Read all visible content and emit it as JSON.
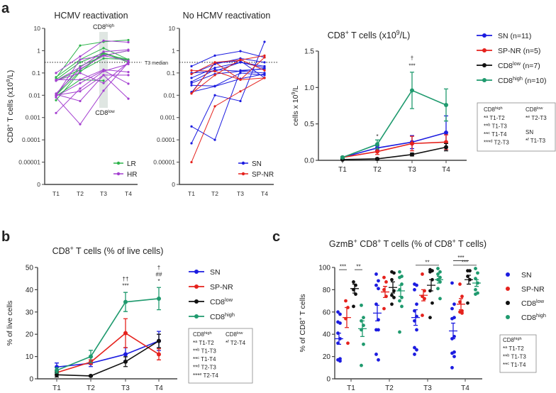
{
  "panel_labels": {
    "a": "a",
    "b": "b",
    "c": "c"
  },
  "colors": {
    "LR": "#2db34a",
    "HR": "#a43fd0",
    "SN": "#1c1ce0",
    "SP-NR": "#e5221d",
    "CD8low": "#111111",
    "CD8high": "#1f9a6e",
    "shade": "#dfe6e2"
  },
  "chart_data": [
    {
      "id": "a-left",
      "type": "line",
      "yscale": "log",
      "title": "HCMV reactivation",
      "ylabel": "CD8^{+} T cells (x10^{9}/L)",
      "categories": [
        "T1",
        "T2",
        "T3",
        "T4"
      ],
      "yticks": [
        "10",
        "1",
        "0.1",
        "0.01",
        "0.001",
        "0.0001",
        "0.00001",
        "0"
      ],
      "reference_line": {
        "value": 0.3,
        "label": "T3 median"
      },
      "annotations": {
        "high": "CD8^{high}",
        "low": "CD8^{low}"
      },
      "legend": [
        {
          "name": "LR",
          "color": "#2db34a"
        },
        {
          "name": "HR",
          "color": "#a43fd0"
        }
      ],
      "series": [
        {
          "group": "LR",
          "values": [
            0.06,
            1.7,
            2.5,
            3
          ]
        },
        {
          "group": "LR",
          "values": [
            0.065,
            0.4,
            1.3,
            0.4
          ]
        },
        {
          "group": "LR",
          "values": [
            0.05,
            0.3,
            0.8,
            0.35
          ]
        },
        {
          "group": "LR",
          "values": [
            0.01,
            0.12,
            0.45,
            0.4
          ]
        },
        {
          "group": "LR",
          "values": [
            0.006,
            0.11,
            0.8,
            0.3
          ]
        },
        {
          "group": "LR",
          "values": [
            0.009,
            0.05,
            0.045,
            null
          ]
        },
        {
          "group": "LR",
          "values": [
            0.045,
            0.14,
            0.7,
            0.4
          ]
        },
        {
          "group": "LR",
          "values": [
            0.01,
            0.2,
            0.6,
            1.0
          ]
        },
        {
          "group": "HR",
          "values": [
            0.1,
            0.55,
            2.8,
            2.4
          ]
        },
        {
          "group": "HR",
          "values": [
            0.045,
            0.18,
            0.9,
            1.1
          ]
        },
        {
          "group": "HR",
          "values": [
            0.012,
            0.15,
            0.6,
            1.0
          ]
        },
        {
          "group": "HR",
          "values": [
            0.05,
            0.05,
            0.14,
            0.11
          ]
        },
        {
          "group": "HR",
          "values": [
            0.011,
            0.0055,
            0.08,
            0.08
          ]
        },
        {
          "group": "HR",
          "values": [
            0.0016,
            0.02,
            0.12,
            0.25
          ]
        },
        {
          "group": "HR",
          "values": [
            0.008,
            0.0005,
            0.016,
            0.3
          ]
        },
        {
          "group": "HR",
          "values": [
            0.009,
            0.035,
            0.13,
            0.033
          ]
        },
        {
          "group": "HR",
          "values": [
            0.01,
            0.015,
            0.08,
            0.007
          ]
        },
        {
          "group": "HR",
          "values": [
            0.045,
            0.1,
            0.035,
            0.3
          ]
        },
        {
          "group": "HR",
          "values": [
            0.01,
            0.4,
            0.6,
            0.35
          ]
        }
      ]
    },
    {
      "id": "a-middle",
      "type": "line",
      "yscale": "log",
      "title": "No HCMV reactivation",
      "categories": [
        "T1",
        "T2",
        "T3",
        "T4"
      ],
      "yticks": [
        "10",
        "1",
        "0.1",
        "0.01",
        "0.001",
        "0.0001",
        "0.00001",
        "0"
      ],
      "reference_line": {
        "value": 0.3
      },
      "legend": [
        {
          "name": "SN",
          "color": "#1c1ce0"
        },
        {
          "name": "SP-NR",
          "color": "#e5221d"
        }
      ],
      "series": [
        {
          "group": "SN",
          "values": [
            0.2,
            0.6,
            0.95,
            0.5
          ]
        },
        {
          "group": "SN",
          "values": [
            0.09,
            0.25,
            0.45,
            0.3
          ]
        },
        {
          "group": "SN",
          "values": [
            0.06,
            0.17,
            0.3,
            0.2
          ]
        },
        {
          "group": "SN",
          "values": [
            0.035,
            0.09,
            0.12,
            0.16
          ]
        },
        {
          "group": "SN",
          "values": [
            0.028,
            0.026,
            0.1,
            0.08
          ]
        },
        {
          "group": "SN",
          "values": [
            0.0004,
            0.0001,
            0.13,
            0.15
          ]
        },
        {
          "group": "SN",
          "values": [
            7e-05,
            0.01,
            0.0055,
            2.5
          ]
        },
        {
          "group": "SN",
          "values": [
            0.014,
            0.025,
            0.055,
            0.09
          ]
        },
        {
          "group": "SN",
          "values": [
            0.013,
            0.28,
            0.35,
            0.06
          ]
        },
        {
          "group": "SN",
          "values": [
            0.04,
            0.14,
            0.12,
            0.1
          ]
        },
        {
          "group": "SN",
          "values": [
            0.1,
            0.12,
            0.3,
            0.17
          ]
        },
        {
          "group": "SP-NR",
          "values": [
            1e-05,
            0.0032,
            0.015,
            0.06
          ]
        },
        {
          "group": "SP-NR",
          "values": [
            0.13,
            0.12,
            0.05,
            0.06
          ]
        },
        {
          "group": "SP-NR",
          "values": [
            0.012,
            0.3,
            0.38,
            0.6
          ]
        },
        {
          "group": "SP-NR",
          "values": [
            0.012,
            0.08,
            0.4,
            0.13
          ]
        },
        {
          "group": "SP-NR",
          "values": [
            0.09,
            0.3,
            0.05,
            0.5
          ]
        }
      ]
    },
    {
      "id": "a-right",
      "type": "line",
      "title": "CD8^{+} T cells (x10^{9}/L)",
      "ylabel": "cells x 10^{9}/L",
      "categories": [
        "T1",
        "T2",
        "T3",
        "T4"
      ],
      "ylim": [
        0,
        1.5
      ],
      "yticks": [
        0,
        0.5,
        1.0,
        1.5
      ],
      "ytick_labels": [
        "0.0",
        "0.5",
        "1.0",
        "1.5"
      ],
      "series": [
        {
          "name": "SN (n=11)",
          "color": "#1c1ce0",
          "values": [
            0.04,
            0.17,
            0.25,
            0.38
          ],
          "err": [
            0.01,
            0.03,
            0.09,
            0.23
          ]
        },
        {
          "name": "SP-NR (n=5)",
          "color": "#e5221d",
          "values": [
            0.04,
            0.12,
            0.23,
            0.25
          ],
          "err": [
            0.01,
            0.04,
            0.1,
            0.1
          ]
        },
        {
          "name": "CD8^{low} (n=7)",
          "color": "#111111",
          "values": [
            0.01,
            0.02,
            0.08,
            0.18
          ],
          "err": [
            0.005,
            0.01,
            0.02,
            0.05
          ]
        },
        {
          "name": "CD8^{high} (n=10)",
          "color": "#1f9a6e",
          "values": [
            0.04,
            0.22,
            0.96,
            0.76
          ],
          "err": [
            0.01,
            0.06,
            0.25,
            0.22
          ]
        }
      ],
      "significance": [
        {
          "category": "T2",
          "value": 0.3,
          "label": "*"
        },
        {
          "category": "T3",
          "value": 1.27,
          "label": "***"
        },
        {
          "category": "T3",
          "value": 1.38,
          "label": "†"
        }
      ],
      "stats_box": [
        {
          "header": "CD8^{high}",
          "lines": [
            "*^{a} T1-T2",
            "**^{b} T1-T3",
            "**^{c} T1-T4",
            "***^{d} T2-T3"
          ]
        },
        {
          "header": "CD8^{low}",
          "lines": [
            "*^{e} T2-T3"
          ]
        },
        {
          "header": "SN",
          "lines": [
            "*^{f} T1-T3"
          ]
        }
      ]
    },
    {
      "id": "b",
      "type": "line",
      "title": "CD8^{+} T cells (% of live cells)",
      "ylabel": "% of live cells",
      "categories": [
        "T1",
        "T2",
        "T3",
        "T4"
      ],
      "ylim": [
        0,
        50
      ],
      "yticks": [
        0,
        10,
        20,
        30,
        40,
        50
      ],
      "ytick_labels": [
        "0",
        "10",
        "20",
        "30",
        "40",
        "50"
      ],
      "series": [
        {
          "name": "SN",
          "color": "#1c1ce0",
          "values": [
            5.3,
            7,
            11,
            17
          ],
          "err": [
            1.8,
            1.5,
            3,
            4.3
          ]
        },
        {
          "name": "SP-NR",
          "color": "#e5221d",
          "values": [
            2.8,
            7.5,
            20.5,
            11
          ],
          "err": [
            1,
            1,
            6.5,
            2.5
          ]
        },
        {
          "name": "CD8^{low}",
          "color": "#111111",
          "values": [
            1.8,
            1.3,
            7.7,
            17
          ],
          "err": [
            1,
            0.3,
            2.2,
            3
          ]
        },
        {
          "name": "CD8^{high}",
          "color": "#1f9a6e",
          "values": [
            3.8,
            10,
            34.5,
            36
          ],
          "err": [
            1.2,
            2.8,
            4.3,
            5
          ]
        }
      ],
      "significance": [
        {
          "category": "T3",
          "value": 41,
          "label": "***"
        },
        {
          "category": "T3",
          "value": 44,
          "label": "††"
        },
        {
          "category": "T4",
          "value": 43,
          "label": "*"
        },
        {
          "category": "T4",
          "value": 46,
          "label": "##"
        },
        {
          "category": "T4",
          "value": 49,
          "label": "†"
        }
      ],
      "stats_box": [
        {
          "header": "CD8^{high}",
          "lines": [
            "*^{a} T1-T2",
            "**^{b} T1-T3",
            "**^{c} T1-T4",
            "**^{d} T2-T3",
            "***^{e} T2-T4"
          ]
        },
        {
          "header": "CD8^{low}",
          "lines": [
            "*^{f} T2-T4"
          ]
        }
      ]
    },
    {
      "id": "c",
      "type": "scatter",
      "title": "GzmB^{+} CD8^{+} T cells (% of CD8^{+} T cells)",
      "ylabel": "% of CD8^{+} T cells",
      "categories": [
        "T1",
        "T2",
        "T3",
        "T4"
      ],
      "ylim": [
        0,
        100
      ],
      "yticks": [
        0,
        20,
        40,
        60,
        80,
        100
      ],
      "ytick_labels": [
        "0",
        "20",
        "40",
        "60",
        "80",
        "100"
      ],
      "series": [
        {
          "name": "SN",
          "color": "#1c1ce0",
          "points": [
            [
              60,
              58,
              51,
              50,
              41,
              36,
              32,
              18,
              17,
              16
            ],
            [
              94,
              88,
              84,
              81,
              67,
              53,
              44,
              44,
              22,
              17
            ],
            [
              85,
              84,
              80,
              67,
              61,
              56,
              52,
              44,
              28,
              26,
              22
            ],
            [
              86,
              67,
              63,
              55,
              54,
              38,
              36,
              24,
              23,
              20,
              10
            ]
          ],
          "mean": [
            36,
            59,
            55,
            43
          ],
          "err": [
            5,
            7,
            7,
            7
          ]
        },
        {
          "name": "SP-NR",
          "color": "#e5221d",
          "points": [
            [
              70,
              64,
              54,
              32
            ],
            [
              91,
              87,
              80,
              74,
              63
            ],
            [
              94,
              79,
              74,
              72,
              57
            ],
            [
              85,
              74,
              69,
              61,
              60,
              59
            ]
          ],
          "mean": [
            55,
            78,
            75,
            67
          ],
          "err": [
            9,
            5,
            5,
            5
          ]
        },
        {
          "name": "CD8^{low}",
          "color": "#111111",
          "points": [
            [
              87,
              84,
              80,
              76,
              65
            ],
            [
              96,
              95,
              89,
              79,
              75,
              73,
              67
            ],
            [
              98,
              97,
              96,
              89,
              79,
              68,
              55
            ],
            [
              97,
              97,
              92,
              89,
              68
            ]
          ],
          "mean": [
            81,
            82,
            84,
            89
          ],
          "err": [
            4,
            5,
            5,
            4
          ]
        },
        {
          "name": "CD8^{high}",
          "color": "#1f9a6e",
          "points": [
            [
              66,
              55,
              52,
              48,
              44,
              31,
              12
            ],
            [
              96,
              92,
              91,
              85,
              80,
              73,
              70,
              65,
              42
            ],
            [
              99,
              96,
              94,
              91,
              89,
              87,
              81,
              72
            ],
            [
              99,
              95,
              90,
              86,
              80,
              77,
              76
            ]
          ],
          "mean": [
            45,
            79,
            89,
            86
          ],
          "err": [
            7,
            5,
            3,
            3
          ]
        }
      ],
      "significance_bars": [
        {
          "category": "T1",
          "from": 0,
          "to": 1,
          "value": 98,
          "label": "***"
        },
        {
          "category": "T1",
          "from": 2,
          "to": 3,
          "value": 98,
          "label": "**"
        },
        {
          "category": "T3",
          "from": 0,
          "to": 3,
          "value": 102,
          "label": "**"
        },
        {
          "category": "T4",
          "from": 0,
          "to": 2,
          "value": 106,
          "label": "***"
        },
        {
          "category": "T4",
          "from": 0,
          "to": 3,
          "value": 102,
          "label": "***"
        }
      ],
      "stats_box": [
        {
          "header": "CD8^{high}",
          "lines": [
            "*^{a} T1-T2",
            "**^{b} T1-T3",
            "**^{c} T1-T4"
          ]
        }
      ]
    }
  ]
}
